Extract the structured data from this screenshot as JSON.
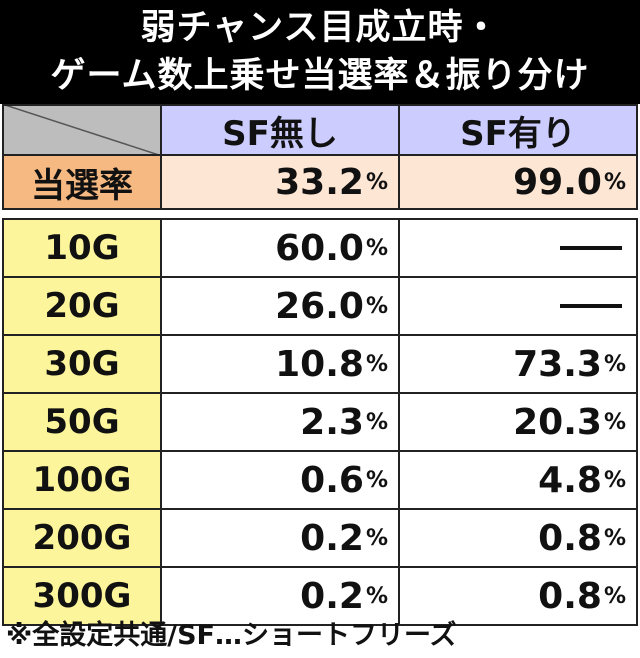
{
  "title": {
    "line1": "弱チャンス目成立時・",
    "line2": "ゲーム数上乗せ当選率＆振り分け"
  },
  "headers": [
    "SF無し",
    "SF有り"
  ],
  "rate": {
    "label": "当選率",
    "sf_none": "33.2",
    "sf_yes": "99.0",
    "unit": "%"
  },
  "rows": [
    {
      "label": "10G",
      "sf_none": "60.0",
      "sf_yes": null
    },
    {
      "label": "20G",
      "sf_none": "26.0",
      "sf_yes": null
    },
    {
      "label": "30G",
      "sf_none": "10.8",
      "sf_yes": "73.3"
    },
    {
      "label": "50G",
      "sf_none": "2.3",
      "sf_yes": "20.3"
    },
    {
      "label": "100G",
      "sf_none": "0.6",
      "sf_yes": "4.8"
    },
    {
      "label": "200G",
      "sf_none": "0.2",
      "sf_yes": "0.8"
    },
    {
      "label": "300G",
      "sf_none": "0.2",
      "sf_yes": "0.8"
    }
  ],
  "footer": "※全設定共通/SF…ショートフリーズ",
  "colors": {
    "header_bg": "#ccccff",
    "rate_label_bg": "#f7b982",
    "rate_value_bg": "#fde6d4",
    "row_label_bg": "#fcf59b",
    "title_bg": "#000000"
  }
}
